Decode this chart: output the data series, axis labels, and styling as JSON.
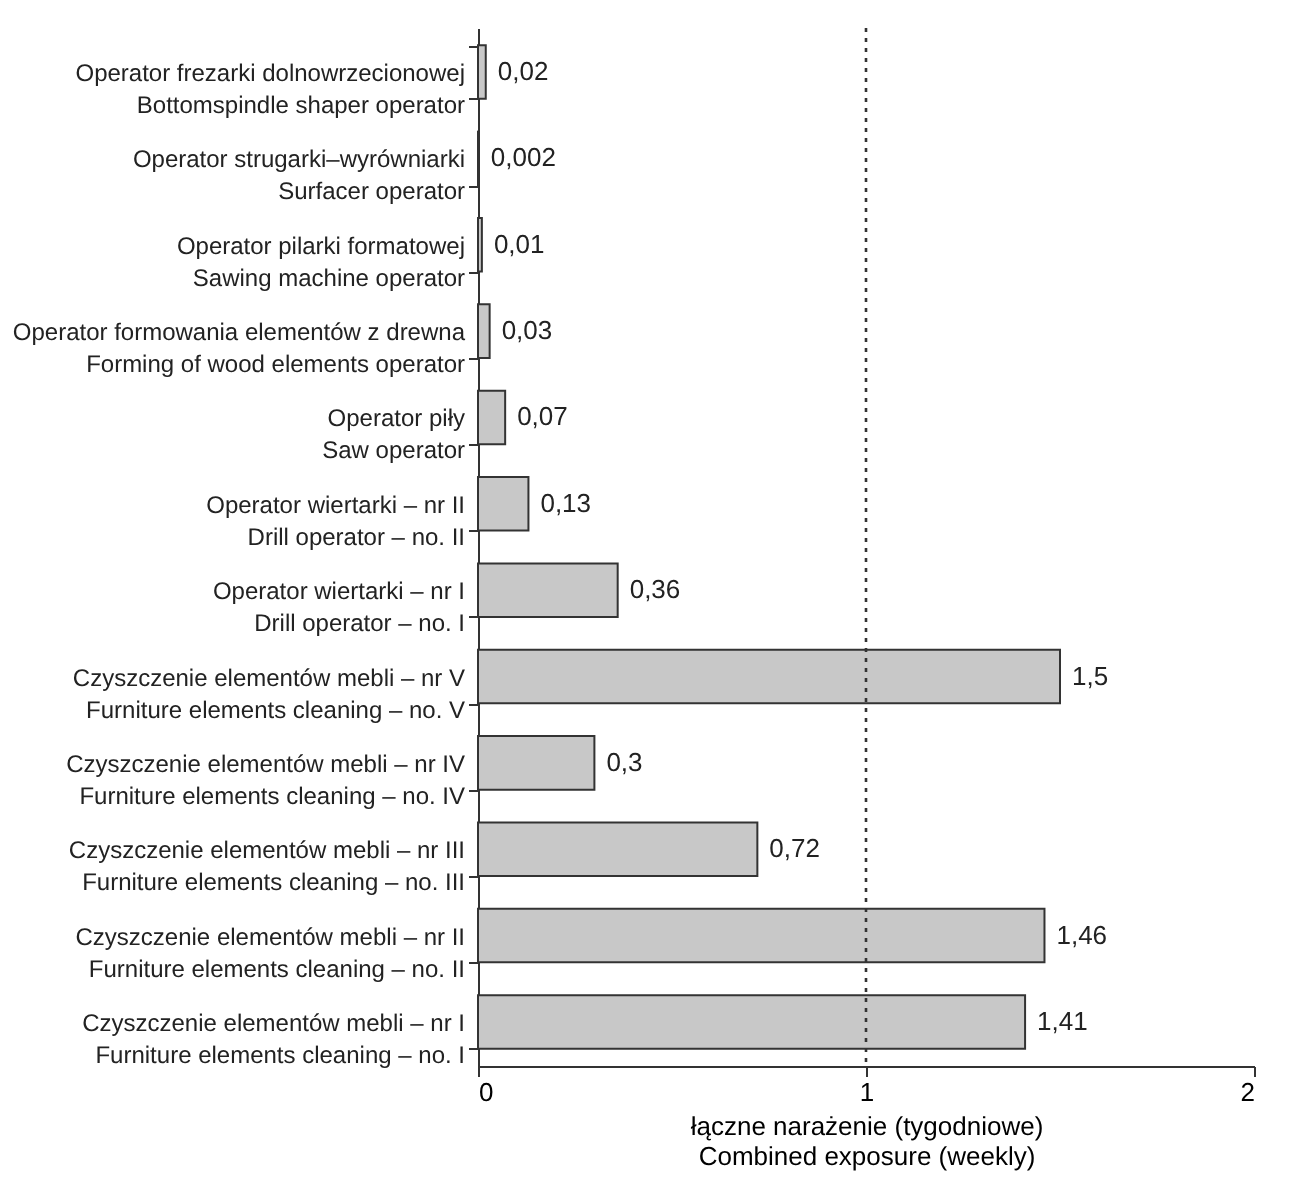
{
  "chart_data": {
    "type": "bar",
    "orientation": "horizontal",
    "categories": [
      "Operator frezarki dolnowrzecionowej\nBottomspindle shaper operator",
      "Operator strugarki–wyrówniarki\nSurfacer operator",
      "Operator pilarki formatowej\nSawing machine operator",
      "Operator formowania elementów z drewna\nForming of wood elements operator",
      "Operator piły\nSaw operator",
      "Operator wiertarki – nr II\nDrill operator – no. II",
      "Operator wiertarki – nr I\nDrill operator – no. I",
      "Czyszczenie elementów mebli – nr V\nFurniture elements cleaning – no. V",
      "Czyszczenie elementów mebli – nr IV\nFurniture elements cleaning – no. IV",
      "Czyszczenie elementów mebli – nr III\nFurniture elements cleaning – no. III",
      "Czyszczenie elementów mebli – nr II\nFurniture elements cleaning – no. II",
      "Czyszczenie elementów mebli – nr I\nFurniture elements cleaning – no. I"
    ],
    "values": [
      0.02,
      0.002,
      0.01,
      0.03,
      0.07,
      0.13,
      0.36,
      1.5,
      0.3,
      0.72,
      1.46,
      1.41
    ],
    "value_labels": [
      "0,02",
      "0,002",
      "0,01",
      "0,03",
      "0,07",
      "0,13",
      "0,36",
      "1,5",
      "0,3",
      "0,72",
      "1,46",
      "1,41"
    ],
    "color": "#c8c8c8",
    "xlim": [
      0,
      2
    ],
    "xticks": [
      0,
      1,
      2
    ],
    "tick_labels": true,
    "xlabel": "łączne narażenie (tygodniowe)\nCombined exposure (weekly)",
    "ref_lines": [
      {
        "axis": "x",
        "value": 1,
        "label": null,
        "line_style": "dotted",
        "color": "#333333"
      }
    ],
    "grid": false,
    "legend": false
  }
}
